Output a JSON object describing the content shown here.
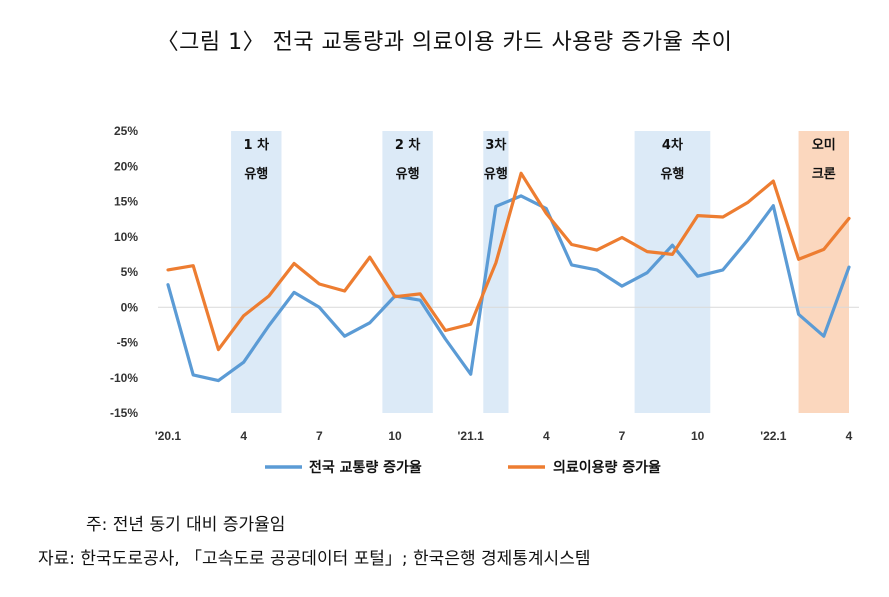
{
  "title": "〈그림 1〉 전국 교통량과 의료이용 카드 사용량 증가율 추이",
  "chart_data": {
    "type": "line",
    "x": [
      "'20.1",
      "2",
      "3",
      "4",
      "5",
      "6",
      "7",
      "8",
      "9",
      "10",
      "11",
      "12",
      "'21.1",
      "2",
      "3",
      "4",
      "5",
      "6",
      "7",
      "8",
      "9",
      "10",
      "11",
      "12",
      "'22.1",
      "2",
      "3",
      "4"
    ],
    "x_tick_labels": [
      {
        "index": 0,
        "label": "'20.1"
      },
      {
        "index": 3,
        "label": "4"
      },
      {
        "index": 6,
        "label": "7"
      },
      {
        "index": 9,
        "label": "10"
      },
      {
        "index": 12,
        "label": "'21.1"
      },
      {
        "index": 15,
        "label": "4"
      },
      {
        "index": 18,
        "label": "7"
      },
      {
        "index": 21,
        "label": "10"
      },
      {
        "index": 24,
        "label": "'22.1"
      },
      {
        "index": 27,
        "label": "4"
      }
    ],
    "y_ticks": [
      "25%",
      "20%",
      "15%",
      "10%",
      "5%",
      "0%",
      "-5%",
      "-10%",
      "-15%"
    ],
    "y_tick_values": [
      25,
      20,
      15,
      10,
      5,
      0,
      -5,
      -10,
      -15
    ],
    "ylim": [
      -15,
      25
    ],
    "series": [
      {
        "name": "전국 교통량 증가율",
        "color": "#5B9BD5",
        "values": [
          3.2,
          -9.6,
          -10.4,
          -7.8,
          -2.6,
          2.1,
          0.0,
          -4.1,
          -2.2,
          1.6,
          1.0,
          -4.5,
          -9.5,
          14.3,
          15.8,
          14.0,
          6.0,
          5.3,
          3.0,
          4.9,
          8.8,
          4.4,
          5.3,
          9.6,
          14.4,
          -1.0,
          -4.1,
          5.7
        ]
      },
      {
        "name": "의료이용량 증가율",
        "color": "#ED7D31",
        "values": [
          5.3,
          5.9,
          -6.0,
          -1.2,
          1.6,
          6.2,
          3.3,
          2.3,
          7.1,
          1.5,
          1.9,
          -3.3,
          -2.4,
          6.3,
          19.0,
          13.3,
          8.9,
          8.1,
          9.9,
          7.9,
          7.5,
          13.0,
          12.8,
          14.9,
          17.9,
          6.8,
          8.2,
          12.6
        ]
      }
    ],
    "bands": [
      {
        "label_line1": "1 차",
        "label_line2": "유행",
        "start_index": 2.5,
        "end_index": 4.5,
        "color": "#DCEAF7"
      },
      {
        "label_line1": "2 차",
        "label_line2": "유행",
        "start_index": 8.5,
        "end_index": 10.5,
        "color": "#DCEAF7"
      },
      {
        "label_line1": "3차",
        "label_line2": "유행",
        "start_index": 12.5,
        "end_index": 13.5,
        "color": "#DCEAF7"
      },
      {
        "label_line1": "4차",
        "label_line2": "유행",
        "start_index": 18.5,
        "end_index": 21.5,
        "color": "#DCEAF7"
      },
      {
        "label_line1": "오미",
        "label_line2": "크론",
        "start_index": 25.0,
        "end_index": 27.0,
        "color": "#FBD7BE"
      }
    ],
    "legend_position": "bottom",
    "grid": false
  },
  "notes": {
    "line1": "주: 전년 동기 대비 증가율임",
    "line2": "자료: 한국도로공사, 「고속도로 공공데이터 포털」; 한국은행 경제통계시스템"
  }
}
